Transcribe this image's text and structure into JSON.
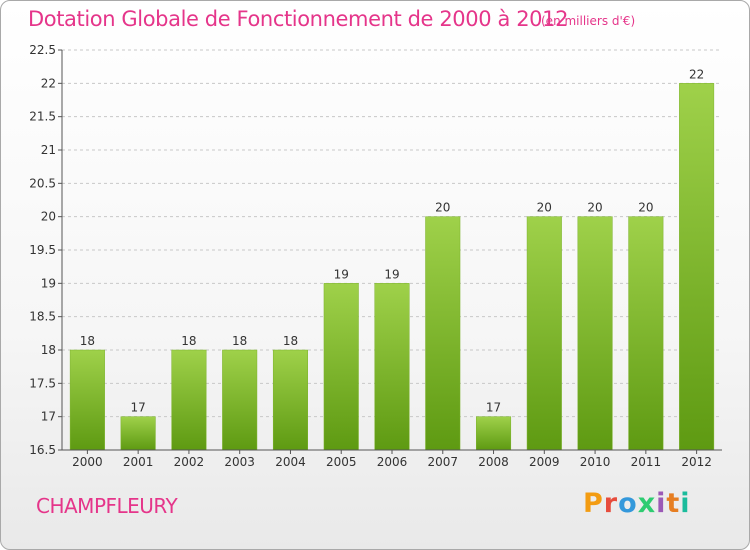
{
  "header": {
    "title": "Dotation Globale de Fonctionnement de 2000 à 2012",
    "subtitle": "(en milliers d'€)"
  },
  "footer": {
    "commune": "CHAMPFLEURY",
    "logo_text": "Proxiti",
    "logo_colors": [
      "#f39c12",
      "#e74c3c",
      "#3498db",
      "#2ecc71",
      "#9b59b6",
      "#e67e22",
      "#1abc9c"
    ]
  },
  "colors": {
    "title": "#e5358a",
    "bar_top": "#9fd14a",
    "bar_bottom": "#5e9a12",
    "grid": "#c8c8c8",
    "axis": "#555555"
  },
  "chart_data": {
    "type": "bar",
    "categories": [
      "2000",
      "2001",
      "2002",
      "2003",
      "2004",
      "2005",
      "2006",
      "2007",
      "2008",
      "2009",
      "2010",
      "2011",
      "2012"
    ],
    "values": [
      18,
      17,
      18,
      18,
      18,
      19,
      19,
      20,
      17,
      20,
      20,
      20,
      22
    ],
    "ylim": [
      16.5,
      22.5
    ],
    "yticks": [
      16.5,
      17,
      17.5,
      18,
      18.5,
      19,
      19.5,
      20,
      20.5,
      21,
      21.5,
      22,
      22.5
    ],
    "grid": true,
    "grid_style": "dashed horizontal",
    "data_labels": true
  }
}
